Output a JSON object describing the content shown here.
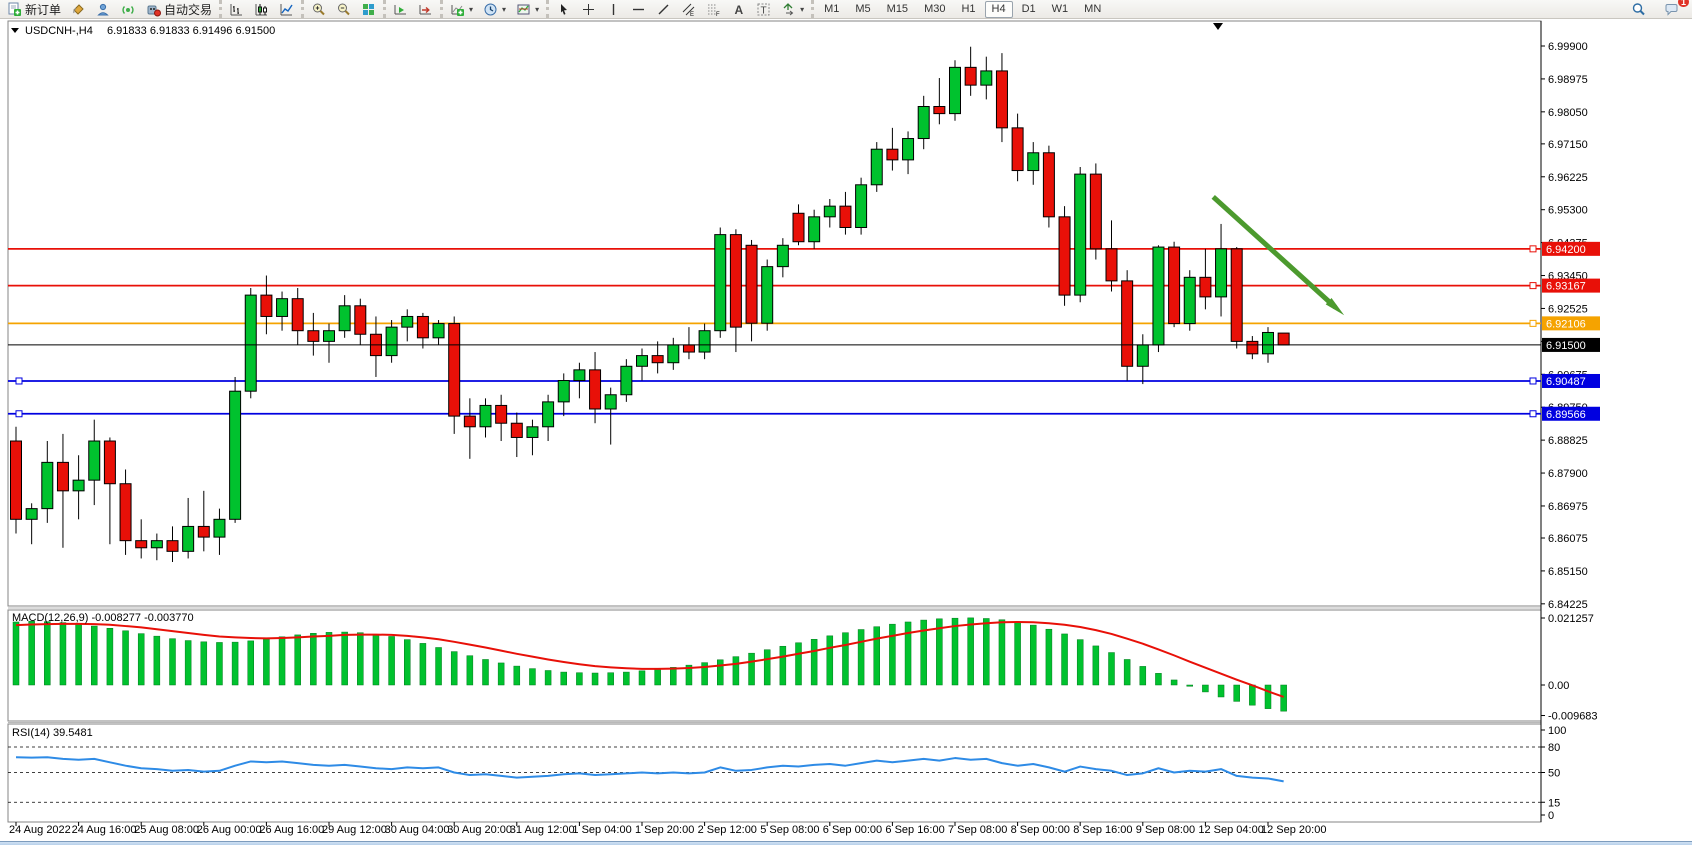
{
  "toolbar": {
    "groups": [
      {
        "name": "trade",
        "items": [
          {
            "name": "new-order-button",
            "icon": "new-order-icon",
            "label": "新订单"
          },
          {
            "name": "styles-button",
            "icon": "styles-bucket-icon"
          },
          {
            "name": "profiles-button",
            "icon": "profiles-icon"
          },
          {
            "name": "signals-button",
            "icon": "signals-icon"
          },
          {
            "name": "autotrading-button",
            "icon": "autotrading-icon",
            "label": "自动交易"
          }
        ]
      },
      {
        "name": "chart-types",
        "items": [
          {
            "name": "bar-chart-button",
            "icon": "bar-chart-icon"
          },
          {
            "name": "candlestick-button",
            "icon": "candlestick-icon"
          },
          {
            "name": "line-chart-button",
            "icon": "line-chart-icon"
          }
        ]
      },
      {
        "name": "zoom",
        "items": [
          {
            "name": "zoom-in-button",
            "icon": "zoom-in-icon"
          },
          {
            "name": "zoom-out-button",
            "icon": "zoom-out-icon"
          },
          {
            "name": "tile-windows-button",
            "icon": "tile-windows-icon"
          }
        ]
      },
      {
        "name": "scroll",
        "items": [
          {
            "name": "auto-scroll-button",
            "icon": "auto-scroll-icon"
          },
          {
            "name": "chart-shift-button",
            "icon": "chart-shift-icon"
          }
        ]
      },
      {
        "name": "chart-tools",
        "items": [
          {
            "name": "indicators-button",
            "icon": "indicators-icon",
            "dropdown": true
          },
          {
            "name": "periods-button",
            "icon": "periods-icon",
            "dropdown": true
          },
          {
            "name": "templates-button",
            "icon": "templates-icon",
            "dropdown": true
          }
        ]
      },
      {
        "name": "objects",
        "items": [
          {
            "name": "cursor-button",
            "icon": "cursor-icon"
          },
          {
            "name": "crosshair-button",
            "icon": "crosshair-icon"
          },
          {
            "name": "vertical-line-button",
            "icon": "vertical-line-icon"
          },
          {
            "name": "horizontal-line-button",
            "icon": "horizontal-line-icon"
          },
          {
            "name": "trendline-button",
            "icon": "trendline-icon"
          },
          {
            "name": "equidistant-channel-button",
            "icon": "equidistant-channel-icon"
          },
          {
            "name": "fibonacci-button",
            "icon": "fibonacci-icon"
          },
          {
            "name": "text-button",
            "icon": "text-icon"
          },
          {
            "name": "text-label-button",
            "icon": "text-label-icon"
          },
          {
            "name": "arrows-button",
            "icon": "arrows-icon",
            "dropdown": true
          }
        ]
      }
    ],
    "timeframes": {
      "items": [
        "M1",
        "M5",
        "M15",
        "M30",
        "H1",
        "H4",
        "D1",
        "W1",
        "MN"
      ],
      "active": "H4"
    },
    "right": {
      "search": {
        "name": "search-button",
        "icon": "search-icon"
      },
      "chat": {
        "name": "chat-button",
        "icon": "chat-icon",
        "badge": "1"
      }
    }
  },
  "chart": {
    "title": {
      "dropdown_glyph": "▼",
      "symbol_period": "USDCNH-,H4",
      "ohlc": "6.91833 6.91833 6.91496 6.91500"
    },
    "indicators": {
      "macd_label": "MACD(12,26,9) -0.008277 -0.003770",
      "rsi_label": "RSI(14) 39.5481"
    }
  },
  "chart_data": {
    "type": "candlestick",
    "symbol": "USDCNH-",
    "timeframe": "H4",
    "current_ohlc": {
      "open": "6.91833",
      "high": "6.91833",
      "low": "6.91496",
      "close": "6.91500"
    },
    "price_axis_ticks": [
      "6.99900",
      "6.98975",
      "6.98050",
      "6.97150",
      "6.96225",
      "6.95300",
      "6.94375",
      "6.93450",
      "6.92525",
      "6.91600",
      "6.90675",
      "6.89750",
      "6.88825",
      "6.87900",
      "6.86975",
      "6.86075",
      "6.85150",
      "6.84225"
    ],
    "time_labels": [
      "24 Aug 2022",
      "24 Aug 16:00",
      "25 Aug 08:00",
      "26 Aug 00:00",
      "26 Aug 16:00",
      "29 Aug 12:00",
      "30 Aug 04:00",
      "30 Aug 20:00",
      "31 Aug 12:00",
      "1 Sep 04:00",
      "1 Sep 20:00",
      "2 Sep 12:00",
      "5 Sep 08:00",
      "6 Sep 00:00",
      "6 Sep 16:00",
      "7 Sep 08:00",
      "8 Sep 00:00",
      "8 Sep 16:00",
      "9 Sep 08:00",
      "12 Sep 04:00",
      "12 Sep 20:00"
    ],
    "bars_per_time_label": 4,
    "candles": [
      [
        6.888,
        6.892,
        6.862,
        6.866
      ],
      [
        6.866,
        6.8705,
        6.859,
        6.869
      ],
      [
        6.869,
        6.888,
        6.865,
        6.882
      ],
      [
        6.882,
        6.89,
        6.858,
        6.874
      ],
      [
        6.874,
        6.884,
        6.866,
        6.877
      ],
      [
        6.877,
        6.894,
        6.87,
        6.888
      ],
      [
        6.888,
        6.889,
        6.859,
        6.876
      ],
      [
        6.876,
        6.88,
        6.856,
        6.86
      ],
      [
        6.86,
        6.866,
        6.855,
        6.858
      ],
      [
        6.858,
        6.862,
        6.8545,
        6.86
      ],
      [
        6.86,
        6.864,
        6.854,
        6.857
      ],
      [
        6.857,
        6.872,
        6.855,
        6.864
      ],
      [
        6.864,
        6.874,
        6.857,
        6.861
      ],
      [
        6.861,
        6.869,
        6.856,
        6.866
      ],
      [
        6.866,
        6.906,
        6.865,
        6.902
      ],
      [
        6.902,
        6.931,
        6.9,
        6.929
      ],
      [
        6.929,
        6.9345,
        6.918,
        6.923
      ],
      [
        6.923,
        6.93,
        6.919,
        6.928
      ],
      [
        6.928,
        6.931,
        6.915,
        6.919
      ],
      [
        6.919,
        6.924,
        6.912,
        6.916
      ],
      [
        6.916,
        6.921,
        6.91,
        6.919
      ],
      [
        6.919,
        6.929,
        6.917,
        6.926
      ],
      [
        6.926,
        6.928,
        6.915,
        6.918
      ],
      [
        6.918,
        6.923,
        6.906,
        6.912
      ],
      [
        6.912,
        6.922,
        6.91,
        6.92
      ],
      [
        6.92,
        6.925,
        6.916,
        6.923
      ],
      [
        6.923,
        6.924,
        6.914,
        6.917
      ],
      [
        6.917,
        6.922,
        6.915,
        6.921
      ],
      [
        6.921,
        6.923,
        6.89,
        6.895
      ],
      [
        6.895,
        6.9,
        6.883,
        6.892
      ],
      [
        6.892,
        6.9,
        6.889,
        6.898
      ],
      [
        6.898,
        6.901,
        6.888,
        6.893
      ],
      [
        6.893,
        6.896,
        6.8835,
        6.889
      ],
      [
        6.889,
        6.894,
        6.884,
        6.892
      ],
      [
        6.892,
        6.901,
        6.888,
        6.899
      ],
      [
        6.899,
        6.907,
        6.895,
        6.905
      ],
      [
        6.905,
        6.91,
        6.9,
        6.908
      ],
      [
        6.908,
        6.913,
        6.893,
        6.897
      ],
      [
        6.897,
        6.903,
        6.887,
        6.901
      ],
      [
        6.901,
        6.911,
        6.899,
        6.909
      ],
      [
        6.909,
        6.914,
        6.905,
        6.912
      ],
      [
        6.912,
        6.916,
        6.907,
        6.91
      ],
      [
        6.91,
        6.917,
        6.908,
        6.915
      ],
      [
        6.915,
        6.92,
        6.911,
        6.913
      ],
      [
        6.913,
        6.921,
        6.911,
        6.919
      ],
      [
        6.919,
        6.948,
        6.917,
        6.946
      ],
      [
        6.946,
        6.9475,
        6.913,
        6.92
      ],
      [
        6.943,
        6.9445,
        6.916,
        6.9211
      ],
      [
        6.9211,
        6.939,
        6.919,
        6.937
      ],
      [
        6.937,
        6.945,
        6.934,
        6.943
      ],
      [
        6.952,
        6.9545,
        6.943,
        6.944
      ],
      [
        6.944,
        6.953,
        6.942,
        6.951
      ],
      [
        6.951,
        6.956,
        6.948,
        6.954
      ],
      [
        6.954,
        6.958,
        6.946,
        6.948
      ],
      [
        6.948,
        6.962,
        6.946,
        6.96
      ],
      [
        6.96,
        6.972,
        6.958,
        6.97
      ],
      [
        6.97,
        6.976,
        6.964,
        6.967
      ],
      [
        6.967,
        6.975,
        6.963,
        6.973
      ],
      [
        6.973,
        6.985,
        6.97,
        6.982
      ],
      [
        6.982,
        6.99,
        6.977,
        6.98
      ],
      [
        6.98,
        6.995,
        6.978,
        6.993
      ],
      [
        6.993,
        6.9988,
        6.985,
        6.988
      ],
      [
        6.988,
        6.996,
        6.984,
        6.992
      ],
      [
        6.992,
        6.997,
        6.972,
        6.976
      ],
      [
        6.976,
        6.98,
        6.961,
        6.964
      ],
      [
        6.964,
        6.972,
        6.96,
        6.969
      ],
      [
        6.969,
        6.971,
        6.948,
        6.951
      ],
      [
        6.951,
        6.954,
        6.926,
        6.929
      ],
      [
        6.929,
        6.965,
        6.927,
        6.963
      ],
      [
        6.963,
        6.966,
        6.939,
        6.942
      ],
      [
        6.942,
        6.95,
        6.93,
        6.933
      ],
      [
        6.933,
        6.936,
        6.905,
        6.909
      ],
      [
        6.909,
        6.918,
        6.904,
        6.915
      ],
      [
        6.915,
        6.943,
        6.913,
        6.9425
      ],
      [
        6.9425,
        6.944,
        6.92,
        6.921
      ],
      [
        6.921,
        6.936,
        6.919,
        6.934
      ],
      [
        6.934,
        6.942,
        6.925,
        6.9285
      ],
      [
        6.9285,
        6.949,
        6.923,
        6.942
      ],
      [
        6.942,
        6.9425,
        6.914,
        6.916
      ],
      [
        6.916,
        6.9175,
        6.911,
        6.9125
      ],
      [
        6.9125,
        6.92,
        6.91,
        6.9185
      ],
      [
        6.91833,
        6.91833,
        6.91496,
        6.915
      ]
    ],
    "horizontal_lines": [
      {
        "price": 6.942,
        "label": "6.94200",
        "color": "#e81008",
        "left_handle": false
      },
      {
        "price": 6.93167,
        "label": "6.93167",
        "color": "#e81008",
        "left_handle": false
      },
      {
        "price": 6.92106,
        "label": "6.92106",
        "color": "#f5a300",
        "left_handle": false
      },
      {
        "price": 6.90487,
        "label": "6.90487",
        "color": "#0000e0",
        "left_handle": true
      },
      {
        "price": 6.89566,
        "label": "6.89566",
        "color": "#0000e0",
        "left_handle": true
      }
    ],
    "current_price_line": {
      "price": 6.915,
      "label": "6.91500",
      "color": "#000000"
    },
    "arrow_annotation": {
      "from": {
        "bar": 76.5,
        "price": 6.9566
      },
      "to": {
        "bar": 84.3,
        "price": 6.9256
      },
      "color": "#4c9a2e"
    },
    "macd": {
      "label": "MACD(12,26,9) -0.008277 -0.003770",
      "value": -0.008277,
      "signal_value": -0.00377,
      "axis_ticks": [
        {
          "text": "0.021257",
          "value": 0.021257
        },
        {
          "text": "0.00",
          "value": 0
        },
        {
          "text": "-0.009683",
          "value": -0.009683
        }
      ],
      "max": 0.021257,
      "min": -0.009683,
      "hist_color": "#00c22e",
      "signal_color": "#e81008",
      "histogram": [
        0.02,
        0.0202,
        0.0201,
        0.0198,
        0.0193,
        0.0187,
        0.018,
        0.0172,
        0.0163,
        0.0155,
        0.0147,
        0.0141,
        0.0137,
        0.0135,
        0.0136,
        0.014,
        0.0146,
        0.0153,
        0.0159,
        0.0164,
        0.0167,
        0.0168,
        0.0166,
        0.0161,
        0.0154,
        0.0144,
        0.0132,
        0.0119,
        0.0106,
        0.0093,
        0.0081,
        0.007,
        0.006,
        0.0052,
        0.0046,
        0.0041,
        0.0039,
        0.0038,
        0.0039,
        0.0041,
        0.0045,
        0.005,
        0.0056,
        0.0063,
        0.0071,
        0.008,
        0.009,
        0.0101,
        0.0112,
        0.0123,
        0.0134,
        0.0145,
        0.0156,
        0.0166,
        0.0176,
        0.0185,
        0.0193,
        0.02,
        0.0206,
        0.021,
        0.0212,
        0.0213,
        0.0211,
        0.0207,
        0.02,
        0.019,
        0.0177,
        0.0162,
        0.0144,
        0.0124,
        0.0103,
        0.0081,
        0.0059,
        0.0037,
        0.0016,
        -0.0004,
        -0.0022,
        -0.0038,
        -0.0052,
        -0.0064,
        -0.0075,
        -0.0083
      ],
      "signal": [
        0.019,
        0.0192,
        0.0193,
        0.0194,
        0.0194,
        0.0193,
        0.0191,
        0.0187,
        0.0183,
        0.0177,
        0.0171,
        0.0165,
        0.0159,
        0.0154,
        0.0151,
        0.0149,
        0.0148,
        0.0149,
        0.0151,
        0.0154,
        0.0156,
        0.0159,
        0.016,
        0.016,
        0.0159,
        0.0156,
        0.0151,
        0.0145,
        0.0137,
        0.0128,
        0.0119,
        0.0109,
        0.0099,
        0.009,
        0.0081,
        0.0073,
        0.0066,
        0.006,
        0.0056,
        0.0053,
        0.0051,
        0.0051,
        0.0052,
        0.0054,
        0.0057,
        0.0062,
        0.0067,
        0.0074,
        0.0082,
        0.009,
        0.0099,
        0.0108,
        0.0118,
        0.0127,
        0.0137,
        0.0147,
        0.0156,
        0.0165,
        0.0173,
        0.018,
        0.0187,
        0.0192,
        0.0196,
        0.0199,
        0.02,
        0.0199,
        0.0196,
        0.0191,
        0.0184,
        0.0174,
        0.0162,
        0.0147,
        0.0131,
        0.0113,
        0.0094,
        0.0074,
        0.0055,
        0.0036,
        0.0017,
        -0.0001,
        -0.002,
        -0.0038
      ]
    },
    "rsi": {
      "label": "RSI(14) 39.5481",
      "value": 39.5481,
      "axis_ticks": [
        {
          "text": "100",
          "value": 100
        },
        {
          "text": "80",
          "value": 80
        },
        {
          "text": "50",
          "value": 50
        },
        {
          "text": "15",
          "value": 15
        },
        {
          "text": "0",
          "value": 0
        }
      ],
      "levels": [
        80,
        50,
        15
      ],
      "color": "#2e8be6",
      "series": [
        68,
        67.5,
        68,
        66,
        65,
        66,
        62,
        58,
        55,
        54,
        52,
        53,
        51,
        52,
        58,
        63,
        62,
        63,
        61,
        59,
        58,
        59,
        57,
        55,
        54,
        56,
        55,
        56,
        50,
        47,
        48,
        46,
        44,
        45,
        46,
        48,
        49,
        47,
        48,
        49,
        50,
        49,
        50,
        49,
        50,
        56,
        52,
        53,
        56,
        58,
        57,
        59,
        60,
        58,
        61,
        64,
        62,
        64,
        66,
        64,
        67,
        65,
        66,
        61,
        58,
        60,
        56,
        51,
        57,
        54,
        52,
        47,
        49,
        55,
        50,
        52,
        51,
        54,
        46,
        44,
        43,
        39.55
      ]
    }
  },
  "colors": {
    "candle_up": "#00c22e",
    "candle_down": "#e81008",
    "candle_border": "#000000",
    "axis_text": "#000000",
    "pane_border": "#868686",
    "background": "#ffffff"
  }
}
